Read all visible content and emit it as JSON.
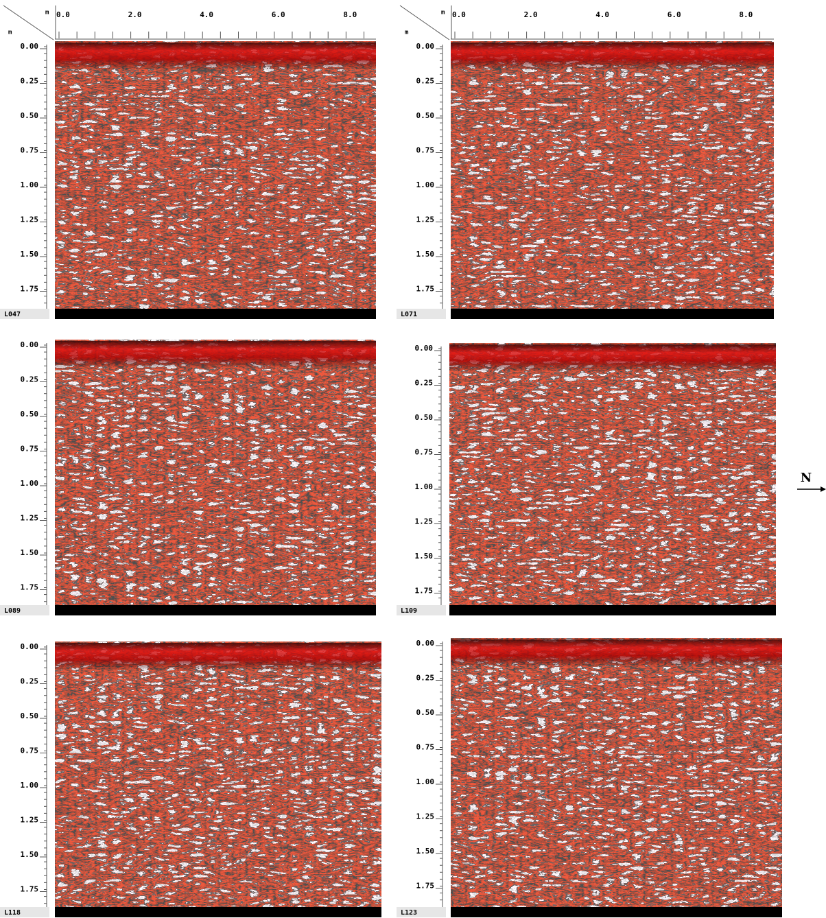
{
  "panels": [
    {
      "label": "L047",
      "x_unit": "m",
      "depth_unit": "m",
      "x_ticks": [
        "0.0",
        "2.0",
        "4.0",
        "6.0",
        "8.0"
      ],
      "depth_ticks": [
        "0.00",
        "0.25",
        "0.50",
        "0.75",
        "1.00",
        "1.25",
        "1.50",
        "1.75"
      ]
    },
    {
      "label": "L071",
      "x_unit": "m",
      "depth_unit": "m",
      "x_ticks": [
        "0.0",
        "2.0",
        "4.0",
        "6.0",
        "8.0"
      ],
      "depth_ticks": [
        "0.00",
        "0.25",
        "0.50",
        "0.75",
        "1.00",
        "1.25",
        "1.50",
        "1.75"
      ]
    },
    {
      "label": "L089",
      "depth_ticks": [
        "0.00",
        "0.25",
        "0.50",
        "0.75",
        "1.00",
        "1.25",
        "1.50",
        "1.75"
      ]
    },
    {
      "label": "L109",
      "depth_ticks": [
        "0.00",
        "0.25",
        "0.50",
        "0.75",
        "1.00",
        "1.25",
        "1.50",
        "1.75"
      ]
    },
    {
      "label": "L118",
      "depth_ticks": [
        "0.00",
        "0.25",
        "0.50",
        "0.75",
        "1.00",
        "1.25",
        "1.50",
        "1.75"
      ]
    },
    {
      "label": "L123",
      "depth_ticks": [
        "0.00",
        "0.25",
        "0.50",
        "0.75",
        "1.00",
        "1.25",
        "1.50",
        "1.75"
      ]
    }
  ],
  "compass": "N"
}
